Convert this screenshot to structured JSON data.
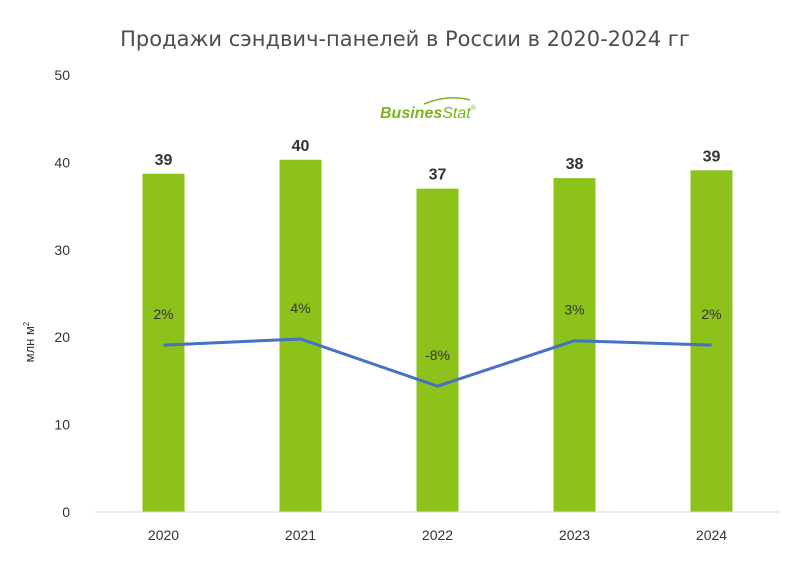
{
  "chart_data": {
    "type": "bar",
    "title": "Продажи сэндвич-панелей в России в  2020-2024 гг",
    "ylabel": "млн м",
    "ylabel_sup": "2",
    "categories": [
      "2020",
      "2021",
      "2022",
      "2023",
      "2024"
    ],
    "ylim": [
      0,
      50
    ],
    "yticks": [
      0,
      10,
      20,
      30,
      40,
      50
    ],
    "grid": false,
    "series": [
      {
        "type": "bar",
        "values": [
          38.7,
          40.3,
          37.0,
          38.2,
          39.1
        ],
        "labels": [
          "39",
          "40",
          "37",
          "38",
          "39"
        ],
        "color": "#8cc21a"
      },
      {
        "type": "line",
        "plot_values": [
          19.1,
          19.8,
          14.4,
          19.6,
          19.1
        ],
        "labels": [
          "2%",
          "4%",
          "-8%",
          "3%",
          "2%"
        ],
        "color": "#4472c4"
      }
    ]
  },
  "watermark": {
    "part1": "Busines",
    "part2": "Stat",
    "reg": "®",
    "color": "#7ab51d"
  }
}
